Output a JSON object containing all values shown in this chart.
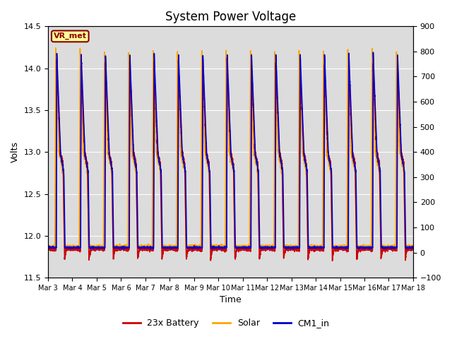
{
  "title": "System Power Voltage",
  "xlabel": "Time",
  "ylabel": "Volts",
  "ylim_left": [
    11.5,
    14.5
  ],
  "ylim_right": [
    -100,
    900
  ],
  "xtick_labels": [
    "Mar 3",
    "Mar 4",
    "Mar 5",
    "Mar 6",
    "Mar 7",
    "Mar 8",
    "Mar 9",
    "Mar 10",
    "Mar 11",
    "Mar 12",
    "Mar 13",
    "Mar 14",
    "Mar 15",
    "Mar 16",
    "Mar 17",
    "Mar 18"
  ],
  "legend_labels": [
    "23x Battery",
    "Solar",
    "CM1_in"
  ],
  "legend_colors": [
    "#cc0000",
    "#ffa500",
    "#0000cc"
  ],
  "annotation_text": "VR_met",
  "annotation_bg": "#ffff99",
  "annotation_border": "#8b0000",
  "plot_bg": "#dcdcdc",
  "fig_bg": "#ffffff",
  "title_fontsize": 12,
  "axis_fontsize": 9,
  "tick_fontsize": 8,
  "legend_fontsize": 9,
  "line_width": 1.2,
  "num_days": 15,
  "pts_per_day": 288,
  "battery_night": 11.85,
  "battery_min": 11.72,
  "battery_peak": 14.08,
  "solar_night": 11.87,
  "solar_peak": 14.22,
  "cm1_night": 11.86,
  "cm1_peak": 14.18,
  "grid_color": "#b0b0b0",
  "yticks_right_labels": [
    "-100",
    "0",
    "100",
    "200",
    "300",
    "400",
    "500",
    "600",
    "700",
    "800",
    "900"
  ]
}
